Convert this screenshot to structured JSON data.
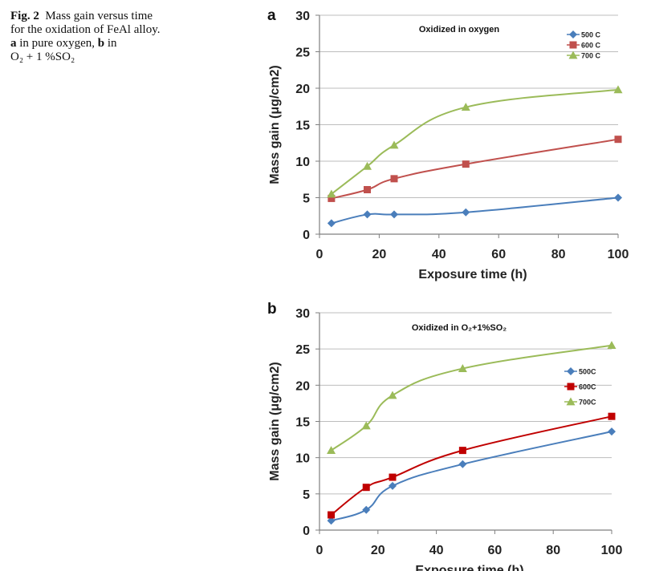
{
  "caption": {
    "label": "Fig. 2",
    "text_1": "Mass gain versus time",
    "text_2": "for the oxidation of FeAl alloy.",
    "a_label": "a",
    "text_3": "in pure oxygen,",
    "b_label": "b",
    "text_4": "in",
    "text_5": "O₂ + 1 %SO₂"
  },
  "chart_data": [
    {
      "panel": "a",
      "type": "line",
      "title": "Oxidized in oxygen",
      "xlabel": "Exposure time (h)",
      "ylabel": "Mass gain (μg/cm2)",
      "xlim": [
        0,
        100
      ],
      "ylim": [
        0,
        30
      ],
      "xticks": [
        0,
        20,
        40,
        60,
        80,
        100
      ],
      "yticks": [
        0,
        5,
        10,
        15,
        20,
        25,
        30
      ],
      "grid": "horizontal",
      "legend_position": "top-right",
      "x": [
        4,
        16,
        25,
        49,
        100
      ],
      "series": [
        {
          "name": "500 C",
          "color": "#4a7ebb",
          "marker": "diamond",
          "values": [
            1.5,
            2.7,
            2.7,
            3.0,
            5.0
          ]
        },
        {
          "name": "600 C",
          "color": "#c0504d",
          "marker": "square",
          "values": [
            4.9,
            6.1,
            7.6,
            9.6,
            13.0
          ]
        },
        {
          "name": "700 C",
          "color": "#9bbb59",
          "marker": "triangle",
          "values": [
            5.5,
            9.3,
            12.2,
            17.4,
            19.8
          ]
        }
      ]
    },
    {
      "panel": "b",
      "type": "line",
      "title": "Oxidized in O₂+1%SO₂",
      "xlabel": "Exposure time (h)",
      "ylabel": "Mass gain (μg/cm2)",
      "xlim": [
        0,
        100
      ],
      "ylim": [
        0,
        30
      ],
      "xticks": [
        0,
        20,
        40,
        60,
        80,
        100
      ],
      "yticks": [
        0,
        5,
        10,
        15,
        20,
        25,
        30
      ],
      "grid": "horizontal",
      "legend_position": "right",
      "x": [
        4,
        16,
        25,
        49,
        100
      ],
      "series": [
        {
          "name": "500C",
          "color": "#4a7ebb",
          "marker": "diamond",
          "values": [
            1.3,
            2.8,
            6.1,
            9.1,
            13.6
          ]
        },
        {
          "name": "600C",
          "color": "#c00000",
          "marker": "square",
          "values": [
            2.1,
            5.9,
            7.3,
            11.0,
            15.7
          ]
        },
        {
          "name": "700C",
          "color": "#9bbb59",
          "marker": "triangle",
          "values": [
            11.0,
            14.4,
            18.6,
            22.3,
            25.5
          ]
        }
      ]
    }
  ]
}
